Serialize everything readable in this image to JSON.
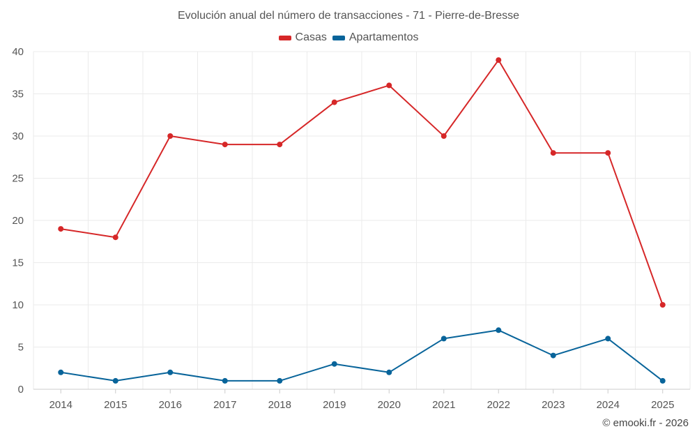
{
  "chart_data": {
    "type": "line",
    "title": "Evolución anual del número de transacciones - 71 - Pierre-de-Bresse",
    "xlabel": "",
    "ylabel": "",
    "categories": [
      "2014",
      "2015",
      "2016",
      "2017",
      "2018",
      "2019",
      "2020",
      "2021",
      "2022",
      "2023",
      "2024",
      "2025"
    ],
    "ylim": [
      0,
      40
    ],
    "yticks": [
      0,
      5,
      10,
      15,
      20,
      25,
      30,
      35,
      40
    ],
    "grid": true,
    "legend_position": "top-center",
    "series": [
      {
        "name": "Casas",
        "color": "#d62728",
        "values": [
          19,
          18,
          30,
          29,
          29,
          34,
          36,
          30,
          39,
          28,
          28,
          10
        ]
      },
      {
        "name": "Apartamentos",
        "color": "#08649a",
        "values": [
          2,
          1,
          2,
          1,
          1,
          3,
          2,
          6,
          7,
          4,
          6,
          1
        ]
      }
    ]
  },
  "credit": "© emooki.fr - 2026"
}
